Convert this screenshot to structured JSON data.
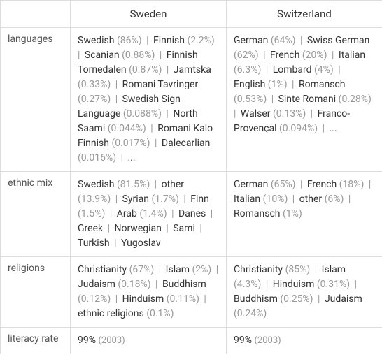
{
  "columns": [
    "Sweden",
    "Switzerland"
  ],
  "rows": [
    {
      "label": "languages",
      "cells": [
        {
          "items": [
            {
              "name": "Swedish",
              "pct": "(86%)"
            },
            {
              "name": "Finnish",
              "pct": "(2.2%)"
            },
            {
              "name": "Scanian",
              "pct": "(0.88%)"
            },
            {
              "name": "Finnish Tornedalen",
              "pct": "(0.87%)"
            },
            {
              "name": "Jamtska",
              "pct": "(0.33%)"
            },
            {
              "name": "Romani Tavringer",
              "pct": "(0.27%)"
            },
            {
              "name": "Swedish Sign Language",
              "pct": "(0.088%)"
            },
            {
              "name": "North Saami",
              "pct": "(0.044%)"
            },
            {
              "name": "Romani Kalo Finnish",
              "pct": "(0.017%)"
            },
            {
              "name": "Dalecarlian",
              "pct": "(0.016%)"
            },
            {
              "name": "...",
              "pct": ""
            }
          ]
        },
        {
          "items": [
            {
              "name": "German",
              "pct": "(64%)"
            },
            {
              "name": "Swiss German",
              "pct": "(62%)"
            },
            {
              "name": "French",
              "pct": "(20%)"
            },
            {
              "name": "Italian",
              "pct": "(6.3%)"
            },
            {
              "name": "Lombard",
              "pct": "(4%)"
            },
            {
              "name": "English",
              "pct": "(1%)"
            },
            {
              "name": "Romansch",
              "pct": "(0.53%)"
            },
            {
              "name": "Sinte Romani",
              "pct": "(0.28%)"
            },
            {
              "name": "Walser",
              "pct": "(0.13%)"
            },
            {
              "name": "Franco-Provençal",
              "pct": "(0.094%)"
            },
            {
              "name": "...",
              "pct": ""
            }
          ]
        }
      ]
    },
    {
      "label": "ethnic mix",
      "cells": [
        {
          "items": [
            {
              "name": "Swedish",
              "pct": "(81.5%)"
            },
            {
              "name": "other",
              "pct": "(13.9%)"
            },
            {
              "name": "Syrian",
              "pct": "(1.7%)"
            },
            {
              "name": "Finn",
              "pct": "(1.5%)"
            },
            {
              "name": "Arab",
              "pct": "(1.4%)"
            },
            {
              "name": "Danes",
              "pct": ""
            },
            {
              "name": "Greek",
              "pct": ""
            },
            {
              "name": "Norwegian",
              "pct": ""
            },
            {
              "name": "Sami",
              "pct": ""
            },
            {
              "name": "Turkish",
              "pct": ""
            },
            {
              "name": "Yugoslav",
              "pct": ""
            }
          ]
        },
        {
          "items": [
            {
              "name": "German",
              "pct": "(65%)"
            },
            {
              "name": "French",
              "pct": "(18%)"
            },
            {
              "name": "Italian",
              "pct": "(10%)"
            },
            {
              "name": "other",
              "pct": "(6%)"
            },
            {
              "name": "Romansch",
              "pct": "(1%)"
            }
          ]
        }
      ]
    },
    {
      "label": "religions",
      "cells": [
        {
          "items": [
            {
              "name": "Christianity",
              "pct": "(67%)"
            },
            {
              "name": "Islam",
              "pct": "(2%)"
            },
            {
              "name": "Judaism",
              "pct": "(0.18%)"
            },
            {
              "name": "Buddhism",
              "pct": "(0.12%)"
            },
            {
              "name": "Hinduism",
              "pct": "(0.11%)"
            },
            {
              "name": "ethnic religions",
              "pct": "(0.1%)"
            }
          ]
        },
        {
          "items": [
            {
              "name": "Christianity",
              "pct": "(85%)"
            },
            {
              "name": "Islam",
              "pct": "(4.3%)"
            },
            {
              "name": "Hinduism",
              "pct": "(0.31%)"
            },
            {
              "name": "Buddhism",
              "pct": "(0.25%)"
            },
            {
              "name": "Judaism",
              "pct": "(0.24%)"
            }
          ]
        }
      ]
    },
    {
      "label": "literacy rate",
      "cells": [
        {
          "literacy": {
            "value": "99%",
            "year": "(2003)"
          }
        },
        {
          "literacy": {
            "value": "99%",
            "year": "(2003)"
          }
        }
      ]
    }
  ]
}
